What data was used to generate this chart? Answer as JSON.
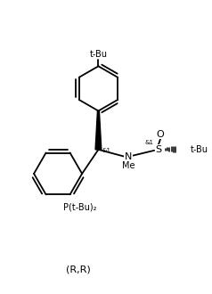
{
  "bg_color": "#ffffff",
  "line_color": "#000000",
  "lw": 1.3,
  "fs": 7,
  "fig_width": 2.38,
  "fig_height": 3.3,
  "dpi": 100,
  "label_rr": "(R,R)",
  "label_tbu_top": "t-Bu",
  "label_ptbu2": "P(t-Bu)₂",
  "label_n": "N",
  "label_me": "Me",
  "label_s": "S",
  "label_o": "O",
  "label_tbu_right": "t-Bu",
  "label_stereo_c": "&1",
  "label_stereo_s": "&1"
}
